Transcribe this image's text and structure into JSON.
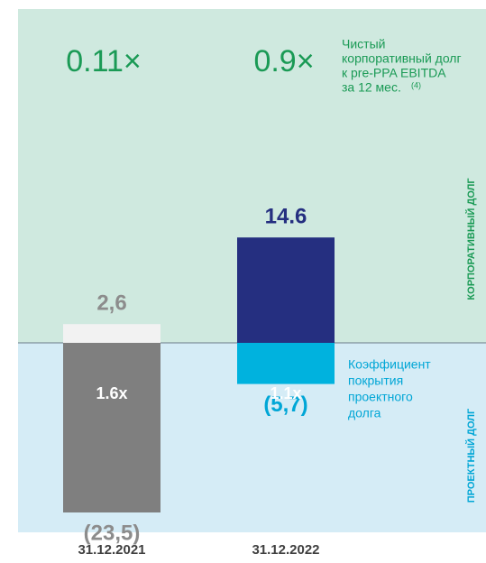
{
  "chart_data": {
    "type": "bar",
    "categories": [
      "31.12.2021",
      "31.12.2022"
    ],
    "series": [
      {
        "name": "КОРПОРАТИВНЫЙ ДОЛГ",
        "colors": [
          "#f2f2f2",
          "#252f80"
        ],
        "label_colors": [
          "#8c8c8c",
          "#252f80"
        ],
        "values": [
          2.6,
          14.6
        ],
        "value_labels": [
          "2,6",
          "14.6"
        ]
      },
      {
        "name": "ПРОЕКТНЫЙ ДОЛГ",
        "colors": [
          "#7f7f7f",
          "#00b2de"
        ],
        "label_colors": [
          "#8c8c8c",
          "#00a6d6"
        ],
        "values": [
          -23.5,
          -5.7
        ],
        "value_labels": [
          "(23,5)",
          "(5,7)"
        ]
      }
    ],
    "ratio_labels": [
      "0.11×",
      "0.9×"
    ],
    "ratio_note": [
      "Чистый",
      "корпоративный долг",
      "к pre-PPA EBITDA",
      "за 12 мес."
    ],
    "note_ref": "(4)",
    "coverage_labels": [
      "1.6x",
      "1.1x"
    ],
    "coverage_note": [
      "Коэффициент",
      "покрытия",
      "проектного",
      "долга"
    ]
  }
}
